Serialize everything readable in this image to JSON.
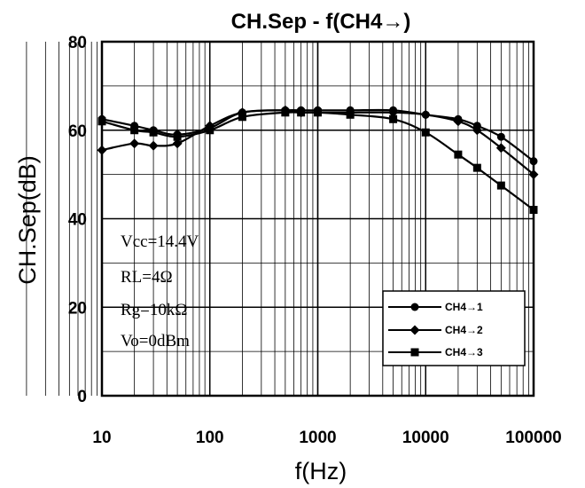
{
  "chart_data": {
    "type": "line",
    "title": "CH.Sep - f(CH4→)",
    "xlabel": "f(Hz)",
    "ylabel": "CH.Sep(dB)",
    "xscale": "log",
    "xlim": [
      10,
      100000
    ],
    "ylim": [
      0,
      80
    ],
    "grid": true,
    "legend_position": "bottom-right",
    "x_ticks": [
      10,
      100,
      1000,
      10000,
      100000
    ],
    "x_tick_labels": [
      "10",
      "100",
      "1000",
      "10000",
      "100000"
    ],
    "y_ticks": [
      0,
      20,
      40,
      60,
      80
    ],
    "y_tick_labels": [
      "0",
      "20",
      "40",
      "60",
      "80"
    ],
    "x": [
      10,
      20,
      30,
      50,
      100,
      200,
      500,
      700,
      1000,
      2000,
      5000,
      10000,
      20000,
      30000,
      50000,
      100000
    ],
    "series": [
      {
        "name": "CH4→1",
        "marker": "circle",
        "values": [
          62.5,
          61,
          60,
          59,
          60.5,
          64,
          64.5,
          64.5,
          64.5,
          64.5,
          64.5,
          63.5,
          62.5,
          61,
          58.5,
          53
        ]
      },
      {
        "name": "CH4→2",
        "marker": "diamond",
        "values": [
          55.5,
          57,
          56.5,
          57,
          61,
          64,
          64.5,
          64,
          64,
          64,
          64,
          63.5,
          62,
          60,
          56,
          50
        ]
      },
      {
        "name": "CH4→3",
        "marker": "square",
        "values": [
          62,
          60,
          59.5,
          58.5,
          60,
          63,
          64,
          64,
          64,
          63.5,
          62.5,
          59.5,
          54.5,
          51.5,
          47.5,
          42
        ]
      }
    ],
    "annotations": [
      "Vcc=14.4V",
      "RL=4Ω",
      "Rg=10kΩ",
      "Vo=0dBm"
    ]
  }
}
